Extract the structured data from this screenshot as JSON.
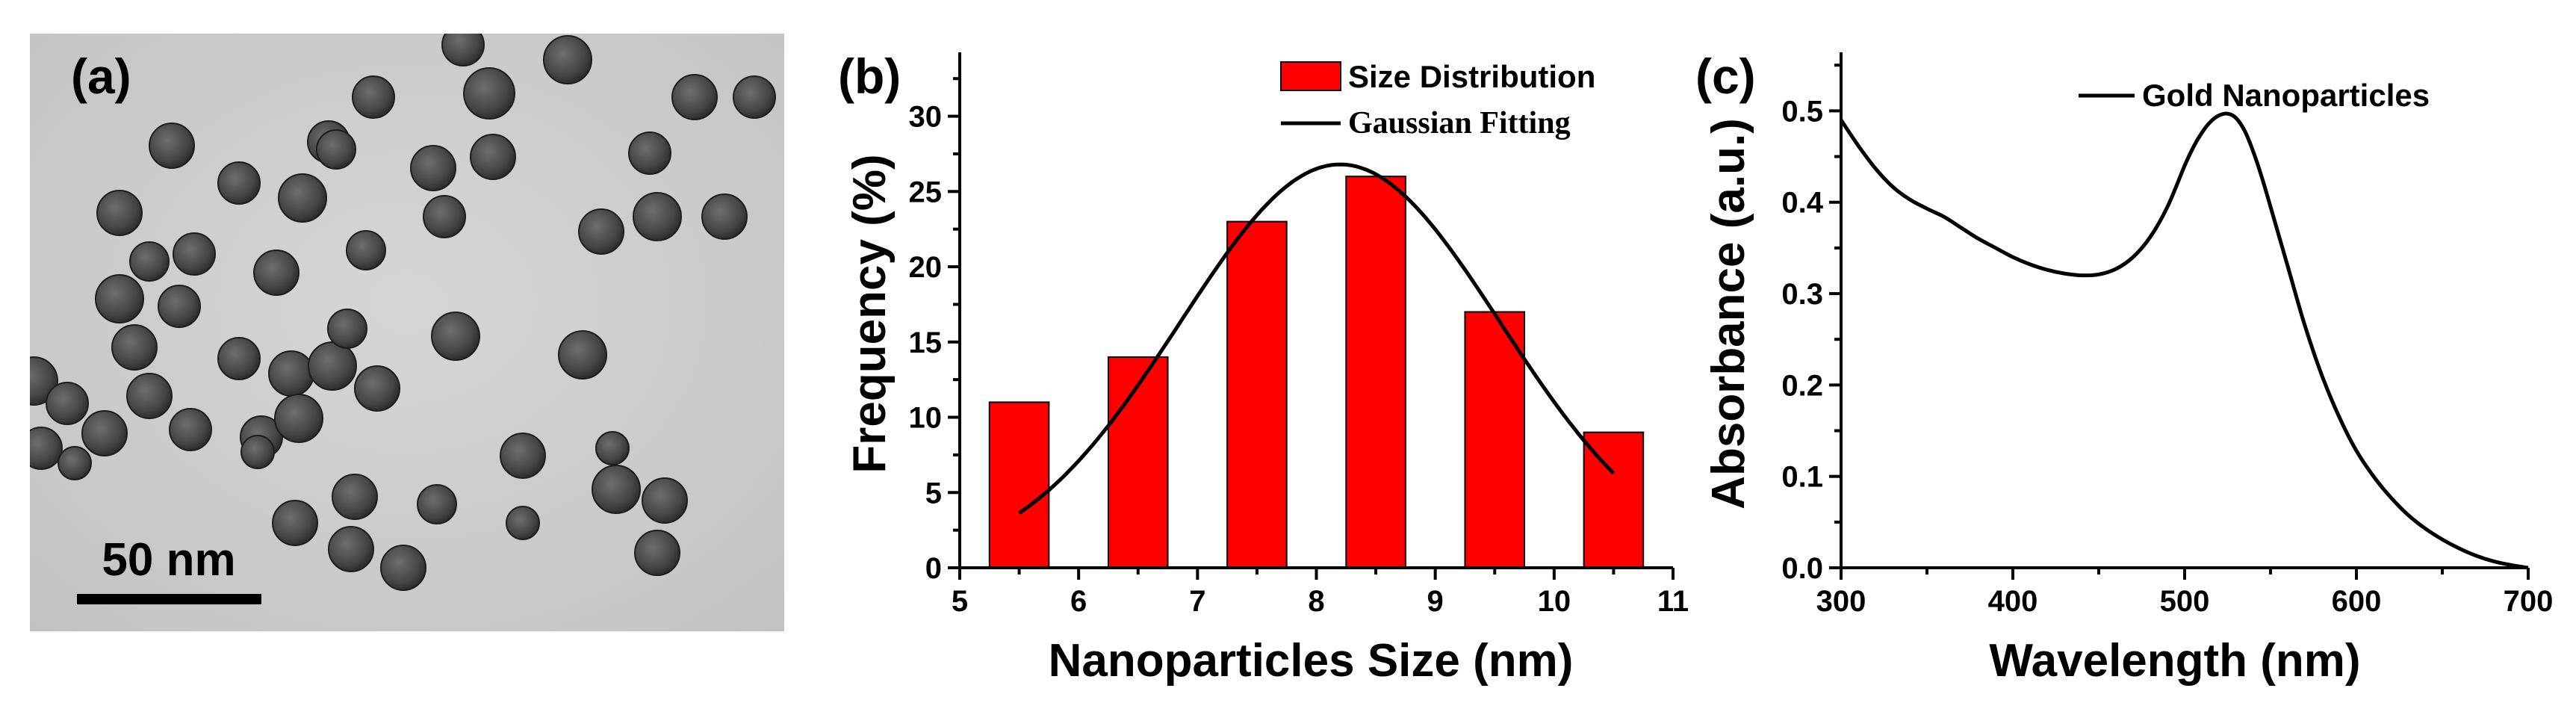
{
  "chart_data": [
    {
      "panel": "(a)",
      "type": "image",
      "scale_bar_label": "50 nm"
    },
    {
      "panel": "(b)",
      "type": "bar",
      "xlabel": "Nanoparticles Size (nm)",
      "ylabel": "Frequency (%)",
      "xlim": [
        5,
        11
      ],
      "ylim": [
        0,
        34
      ],
      "x_ticks": [
        5,
        6,
        7,
        8,
        9,
        10,
        11
      ],
      "y_ticks": [
        0,
        5,
        10,
        15,
        20,
        25,
        30
      ],
      "legend": [
        "Size Distribution",
        "Gaussian Fitting"
      ],
      "legend_position": "top-right",
      "series": [
        {
          "name": "Size Distribution",
          "type": "bar",
          "x": [
            5.5,
            6.5,
            7.5,
            8.5,
            9.5,
            10.5
          ],
          "values": [
            11,
            14,
            23,
            26,
            17,
            9
          ],
          "bar_width": 0.5
        },
        {
          "name": "Gaussian Fitting",
          "type": "line",
          "amplitude": 26.8,
          "center": 8.2,
          "sigma": 1.35,
          "x_range": [
            5.5,
            10.5
          ]
        }
      ]
    },
    {
      "panel": "(c)",
      "type": "line",
      "xlabel": "Wavelength (nm)",
      "ylabel": "Absorbance (a.u.)",
      "xlim": [
        300,
        700
      ],
      "ylim": [
        0,
        0.56
      ],
      "x_ticks": [
        300,
        400,
        500,
        600,
        700
      ],
      "y_ticks": [
        "0.0",
        "0.1",
        "0.2",
        "0.3",
        "0.4",
        "0.5"
      ],
      "legend": [
        "Gold Nanoparticles"
      ],
      "legend_position": "top-right",
      "series": [
        {
          "name": "Gold Nanoparticles",
          "x": [
            300,
            310,
            320,
            330,
            340,
            350,
            360,
            370,
            380,
            390,
            400,
            410,
            420,
            430,
            440,
            450,
            460,
            470,
            480,
            490,
            500,
            505,
            510,
            515,
            520,
            525,
            530,
            535,
            540,
            545,
            550,
            560,
            570,
            580,
            590,
            600,
            610,
            620,
            630,
            640,
            650,
            660,
            670,
            680,
            690,
            700
          ],
          "y": [
            0.49,
            0.462,
            0.437,
            0.417,
            0.403,
            0.393,
            0.384,
            0.372,
            0.36,
            0.35,
            0.34,
            0.332,
            0.326,
            0.322,
            0.32,
            0.321,
            0.327,
            0.34,
            0.362,
            0.395,
            0.44,
            0.46,
            0.476,
            0.488,
            0.495,
            0.497,
            0.492,
            0.478,
            0.455,
            0.427,
            0.395,
            0.33,
            0.265,
            0.21,
            0.165,
            0.128,
            0.1,
            0.077,
            0.058,
            0.043,
            0.031,
            0.021,
            0.013,
            0.007,
            0.003,
            0.0
          ]
        }
      ]
    }
  ]
}
